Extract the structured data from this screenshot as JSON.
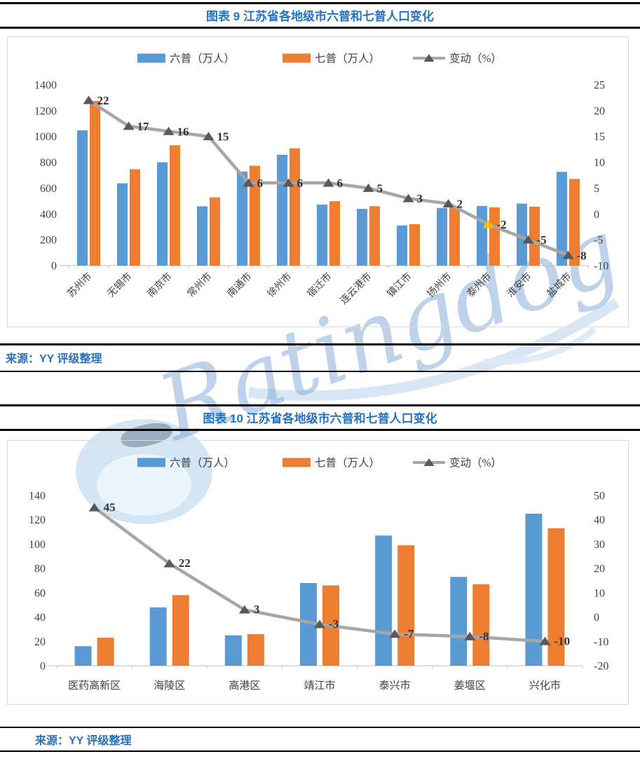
{
  "watermark": {
    "text": "Ratingdog"
  },
  "figures": [
    {
      "title": "图表 9 江苏省各地级市六普和七普人口变化",
      "source": "来源：YY 评级整理"
    },
    {
      "title": "图表 10 江苏省各地级市六普和七普人口变化",
      "source": "来源：YY 评级整理"
    }
  ],
  "colors": {
    "bar_blue": "#5B9BD5",
    "bar_orange": "#ED7D31",
    "line_gray": "#A6A6A6",
    "marker_gray": "#595959",
    "marker_yellow": "#FFC000",
    "accent_blue": "#2173C4"
  },
  "chart_data": [
    {
      "type": "combo-bar-line",
      "title": "图表 9 江苏省各地级市六普和七普人口变化",
      "legend_position": "top",
      "grid": false,
      "categories": [
        "苏州市",
        "无锡市",
        "南京市",
        "常州市",
        "南通市",
        "徐州市",
        "宿迁市",
        "连云港市",
        "镇江市",
        "扬州市",
        "泰州市",
        "淮安市",
        "盐城市"
      ],
      "series": [
        {
          "name": "六普（万人）",
          "kind": "bar",
          "axis": "left",
          "color": "#5B9BD5",
          "values": [
            1047,
            637,
            800,
            459,
            728,
            858,
            472,
            439,
            311,
            446,
            462,
            480,
            726
          ]
        },
        {
          "name": "七普（万人）",
          "kind": "bar",
          "axis": "left",
          "color": "#ED7D31",
          "values": [
            1275,
            746,
            932,
            528,
            773,
            908,
            499,
            460,
            321,
            456,
            451,
            456,
            671
          ]
        },
        {
          "name": "变动（%）",
          "kind": "line",
          "axis": "right",
          "color": "#A6A6A6",
          "marker_color": "#595959",
          "highlight_index": 10,
          "highlight_color": "#FFC000",
          "values": [
            22,
            17,
            16,
            15,
            6,
            6,
            6,
            5,
            3,
            2,
            -2,
            -5,
            -8
          ],
          "labels": [
            "22",
            "17",
            "16",
            "15",
            "6",
            "6",
            "6",
            "5",
            "3",
            "2",
            "-2",
            "-5",
            "-8"
          ]
        }
      ],
      "left_axis": {
        "min": 0,
        "max": 1400,
        "step": 200,
        "ticks": [
          0,
          200,
          400,
          600,
          800,
          1000,
          1200,
          1400
        ]
      },
      "right_axis": {
        "min": -10,
        "max": 25,
        "step": 5,
        "ticks": [
          -10,
          -5,
          0,
          5,
          10,
          15,
          20,
          25
        ]
      },
      "x_label_rotation": -45
    },
    {
      "type": "combo-bar-line",
      "title": "图表 10 江苏省各地级市六普和七普人口变化",
      "legend_position": "top",
      "grid": false,
      "categories": [
        "医药高新区",
        "海陵区",
        "高港区",
        "靖江市",
        "泰兴市",
        "姜堰区",
        "兴化市"
      ],
      "series": [
        {
          "name": "六普（万人）",
          "kind": "bar",
          "axis": "left",
          "color": "#5B9BD5",
          "values": [
            16,
            48,
            25,
            68,
            107,
            73,
            125
          ]
        },
        {
          "name": "七普（万人）",
          "kind": "bar",
          "axis": "left",
          "color": "#ED7D31",
          "values": [
            23,
            58,
            26,
            66,
            99,
            67,
            113
          ]
        },
        {
          "name": "变动（%）",
          "kind": "line",
          "axis": "right",
          "color": "#A6A6A6",
          "marker_color": "#595959",
          "highlight_index": null,
          "highlight_color": null,
          "values": [
            45,
            22,
            3,
            -3,
            -7,
            -8,
            -10
          ],
          "labels": [
            "45",
            "22",
            "3",
            "-3",
            "-7",
            "-8",
            "-10"
          ]
        }
      ],
      "left_axis": {
        "min": 0,
        "max": 140,
        "step": 20,
        "ticks": [
          0,
          20,
          40,
          60,
          80,
          100,
          120,
          140
        ]
      },
      "right_axis": {
        "min": -20,
        "max": 50,
        "step": 10,
        "ticks": [
          -20,
          -10,
          0,
          10,
          20,
          30,
          40,
          50
        ]
      },
      "x_label_rotation": 0
    }
  ]
}
